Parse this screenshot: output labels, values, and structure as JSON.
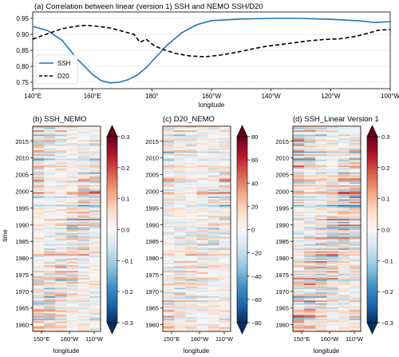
{
  "chart_data": [
    {
      "type": "line",
      "title": "(a) Correlation between linear (version 1) SSH and NEMO SSH/D20",
      "xlabel": "longitude",
      "ylabel": "",
      "xlim": [
        140,
        260
      ],
      "ylim": [
        0.73,
        0.97
      ],
      "x_ticks": [
        140,
        160,
        180,
        200,
        220,
        240,
        260
      ],
      "x_tick_labels": [
        "140°E",
        "160°E",
        "180°",
        "160°W",
        "140°W",
        "120°W",
        "100°W"
      ],
      "y_ticks": [
        0.75,
        0.8,
        0.85,
        0.9,
        0.95
      ],
      "y_tick_labels": [
        "0.75",
        "0.80",
        "0.85",
        "0.90",
        "0.95"
      ],
      "grid": "horizontal dotted",
      "legend_position": "lower-left",
      "series": [
        {
          "name": "SSH",
          "color": "#1f77b4",
          "style": "solid",
          "points": [
            [
              140,
              0.925
            ],
            [
              145,
              0.912
            ],
            [
              150,
              0.88
            ],
            [
              155,
              0.822
            ],
            [
              160,
              0.775
            ],
            [
              163,
              0.755
            ],
            [
              166,
              0.748
            ],
            [
              169,
              0.75
            ],
            [
              172,
              0.758
            ],
            [
              175,
              0.772
            ],
            [
              178,
              0.795
            ],
            [
              181,
              0.825
            ],
            [
              185,
              0.865
            ],
            [
              190,
              0.905
            ],
            [
              195,
              0.93
            ],
            [
              200,
              0.943
            ],
            [
              210,
              0.948
            ],
            [
              220,
              0.95
            ],
            [
              230,
              0.95
            ],
            [
              240,
              0.947
            ],
            [
              250,
              0.942
            ],
            [
              255,
              0.937
            ],
            [
              260,
              0.94
            ]
          ]
        },
        {
          "name": "D20",
          "color": "#000000",
          "style": "dashed",
          "points": [
            [
              140,
              0.885
            ],
            [
              145,
              0.902
            ],
            [
              150,
              0.918
            ],
            [
              155,
              0.926
            ],
            [
              158,
              0.928
            ],
            [
              162,
              0.925
            ],
            [
              166,
              0.92
            ],
            [
              170,
              0.91
            ],
            [
              174,
              0.9
            ],
            [
              176,
              0.875
            ],
            [
              178,
              0.885
            ],
            [
              181,
              0.863
            ],
            [
              184,
              0.852
            ],
            [
              188,
              0.84
            ],
            [
              193,
              0.832
            ],
            [
              198,
              0.83
            ],
            [
              203,
              0.835
            ],
            [
              208,
              0.843
            ],
            [
              213,
              0.853
            ],
            [
              218,
              0.862
            ],
            [
              223,
              0.868
            ],
            [
              228,
              0.874
            ],
            [
              233,
              0.88
            ],
            [
              238,
              0.884
            ],
            [
              243,
              0.886
            ],
            [
              248,
              0.893
            ],
            [
              252,
              0.902
            ],
            [
              256,
              0.913
            ],
            [
              260,
              0.915
            ]
          ]
        }
      ]
    },
    {
      "type": "heatmap",
      "title": "(b) SSH_NEMO",
      "xlabel": "longitude",
      "ylabel": "time",
      "x_tick_labels": [
        "150°E",
        "160°W",
        "110°W"
      ],
      "y_tick_labels": [
        "1960",
        "1965",
        "1970",
        "1975",
        "1980",
        "1985",
        "1990",
        "1995",
        "2000",
        "2005",
        "2010",
        "2015"
      ],
      "colorbar_ticks": [
        "0.3",
        "0.2",
        "0.1",
        "0.0",
        "−0.1",
        "−0.2",
        "−0.3"
      ],
      "colormap": "RdBu_r",
      "vmin": -0.3,
      "vmax": 0.3,
      "row_amplitudes": [
        0.3,
        -0.4,
        0.15,
        0.5,
        -0.2,
        0.1,
        -0.6,
        -0.3,
        0.2,
        -0.5,
        0.6,
        -0.2,
        0.3,
        -0.4,
        0.2,
        0.1,
        -0.3,
        0.4,
        -0.7,
        0.2,
        0.5,
        -0.1,
        0.3,
        -0.6,
        -0.4,
        0.2,
        0.4,
        -0.2,
        0.6,
        0.3,
        -0.3,
        0.1,
        -0.2,
        -0.5,
        0.2,
        0.4,
        -0.3,
        0.5,
        0.7,
        -0.5,
        -0.3,
        0.2,
        0.5,
        -0.2,
        0.3,
        -0.4,
        0.6,
        0.9,
        0.4,
        -0.3,
        -0.6,
        0.2,
        -0.4,
        0.3,
        0.5,
        -0.2,
        -0.8,
        -0.5,
        0.2,
        0.3,
        -0.3,
        0.4,
        0.1,
        -0.2,
        0.3,
        -0.3,
        0.6,
        0.2,
        -0.4,
        0.3,
        0.5,
        -0.3,
        -0.6,
        0.4,
        0.2,
        -0.2,
        -0.5,
        0.3,
        -0.4,
        0.6,
        0.3,
        -0.2,
        -0.3,
        0.4,
        -0.4,
        0.2,
        0.3,
        -0.5,
        0.1,
        0.4,
        -0.3,
        0.6,
        -0.4,
        -0.2,
        0.3,
        -0.3,
        0.5,
        -0.2,
        0.2,
        0.4,
        -0.5,
        0.3,
        -0.1,
        0.5,
        0.3,
        -0.3,
        -0.2,
        0.4,
        0.6,
        -0.5,
        -0.3,
        0.4,
        0.5,
        -0.2,
        0.3,
        -0.4,
        0.2,
        0.1,
        -0.3,
        0.4,
        0.5,
        -0.6,
        -0.2,
        0.3,
        0.6,
        -0.3,
        -0.4,
        0.2,
        0.3,
        -0.3,
        0.4,
        0.5,
        0.2,
        -0.3,
        0.4,
        0.6,
        -0.4,
        -0.5,
        0.3,
        0.4,
        0.2,
        -0.3,
        0.3,
        0.5,
        -0.2,
        0.4
      ]
    },
    {
      "type": "heatmap",
      "title": "(c) D20_NEMO",
      "xlabel": "longitude",
      "ylabel": "",
      "x_tick_labels": [
        "150°E",
        "160°W",
        "110°W"
      ],
      "y_tick_labels": [
        "1960",
        "1965",
        "1970",
        "1975",
        "1980",
        "1985",
        "1990",
        "1995",
        "2000",
        "2005",
        "2010",
        "2015"
      ],
      "colorbar_ticks": [
        "80",
        "60",
        "40",
        "20",
        "0",
        "−20",
        "−40",
        "−60",
        "−80"
      ],
      "colormap": "RdBu_r",
      "vmin": -80,
      "vmax": 80
    },
    {
      "type": "heatmap",
      "title": "(d) SSH_Linear Version 1",
      "xlabel": "longitude",
      "ylabel": "",
      "x_tick_labels": [
        "150°E",
        "160°W",
        "110°W"
      ],
      "y_tick_labels": [
        "1960",
        "1965",
        "1970",
        "1975",
        "1980",
        "1985",
        "1990",
        "1995",
        "2000",
        "2005",
        "2010",
        "2015"
      ],
      "colorbar_ticks": [
        "0.3",
        "0.2",
        "0.1",
        "0.0",
        "−0.1",
        "−0.2",
        "−0.3"
      ],
      "colormap": "RdBu_r",
      "vmin": -0.3,
      "vmax": 0.3
    }
  ]
}
